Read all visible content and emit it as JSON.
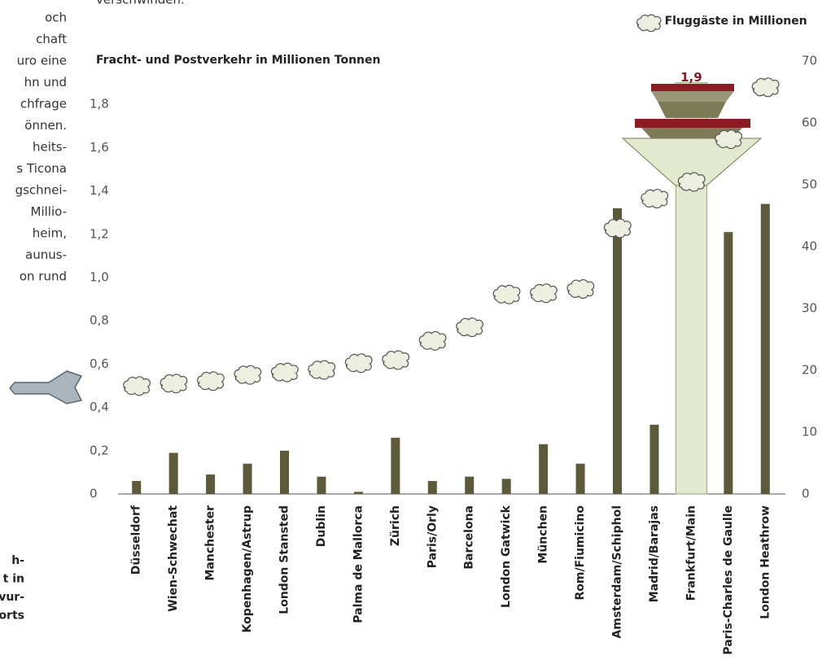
{
  "page_text": {
    "top": "verschwinden.",
    "left_column": [
      "och",
      "chaft",
      "uro eine",
      "hn und",
      "chfrage",
      "önnen.",
      "heits-",
      "s Ticona",
      "gschnei-",
      "Millio-",
      "heim,",
      "aunus-",
      "on rund"
    ],
    "left_bottom": [
      "h-",
      "t in",
      "vur-",
      "orts"
    ]
  },
  "chart_data": {
    "type": "bar",
    "y_label": "Fracht- und Postverkehr in Millionen Tonnen",
    "legend_text": "= Fluggäste in Millionen",
    "categories": [
      "Düsseldorf",
      "Wien-Schwechat",
      "Manchester",
      "Kopenhagen/Astrup",
      "London  Stansted",
      "Dublin",
      "Palma de Mallorca",
      "Zürich",
      "Paris/Orly",
      "Barcelona",
      "London Gatwick",
      "München",
      "Rom/Fiumicino",
      "Amsterdam/Schiphol",
      "Madrid/Barajas",
      "Frankfurt/Main",
      "Paris-Charles de Gaulle",
      "London Heathrow"
    ],
    "series": [
      {
        "name": "Fracht- und Postverkehr",
        "values": [
          0.06,
          0.19,
          0.09,
          0.14,
          0.2,
          0.08,
          0.01,
          0.26,
          0.06,
          0.08,
          0.07,
          0.23,
          0.14,
          1.32,
          0.32,
          1.9,
          1.21,
          1.34
        ],
        "value_labels": [
          null,
          null,
          null,
          null,
          null,
          null,
          null,
          null,
          null,
          null,
          null,
          null,
          null,
          null,
          null,
          "1,9",
          null,
          null
        ],
        "colors": [
          "#5c5a3a",
          "#5c5a3a",
          "#5c5a3a",
          "#5c5a3a",
          "#5c5a3a",
          "#5c5a3a",
          "#5c5a3a",
          "#5c5a3a",
          "#5c5a3a",
          "#5c5a3a",
          "#5c5a3a",
          "#5c5a3a",
          "#5c5a3a",
          "#5c5a3a",
          "#5c5a3a",
          "#e3e9cf",
          "#5c5a3a",
          "#5c5a3a"
        ]
      },
      {
        "name": "Fluggäste",
        "axis": "y2",
        "color": "#ecefe0",
        "values": [
          17.5,
          17.9,
          18.3,
          19.3,
          19.7,
          20.1,
          21.2,
          21.7,
          24.8,
          27,
          32.3,
          32.5,
          33.2,
          43,
          47.8,
          50.5,
          57.4,
          65.8
        ]
      }
    ],
    "ylim": [
      0,
      2.0
    ],
    "yticks": [
      {
        "value": 0,
        "label": "0"
      },
      {
        "value": 0.2,
        "label": "0,2"
      },
      {
        "value": 0.4,
        "label": "0,4"
      },
      {
        "value": 0.6,
        "label": "0,6"
      },
      {
        "value": 0.8,
        "label": "0,8"
      },
      {
        "value": 1.0,
        "label": "1,0"
      },
      {
        "value": 1.2,
        "label": "1,2"
      },
      {
        "value": 1.4,
        "label": "1,4"
      },
      {
        "value": 1.6,
        "label": "1,6"
      },
      {
        "value": 1.8,
        "label": "1,8"
      }
    ],
    "y2lim": [
      0,
      70
    ],
    "y2ticks": [
      0,
      10,
      20,
      30,
      40,
      50,
      60,
      70
    ],
    "label_color": "#8b1c24"
  }
}
